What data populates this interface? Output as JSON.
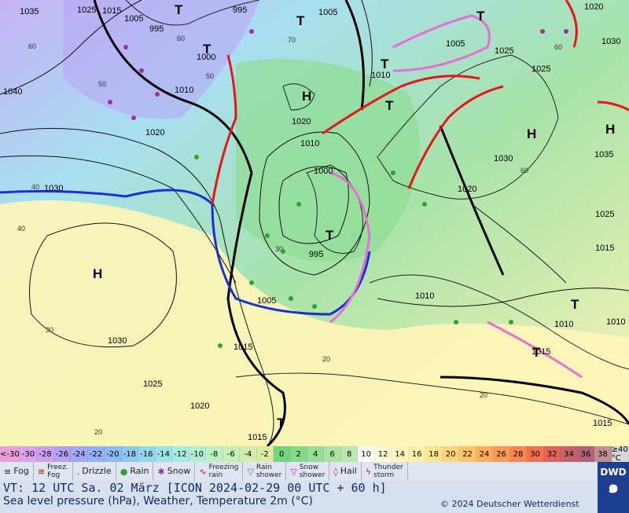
{
  "map": {
    "pressure_labels": [
      "1035",
      "1025",
      "1015",
      "1005",
      "995",
      "995",
      "1005",
      "1040",
      "1010",
      "1020",
      "1030",
      "1000",
      "1010",
      "1020",
      "1010",
      "1000",
      "995",
      "1005",
      "1015",
      "1030",
      "1025",
      "1015",
      "1005",
      "1010",
      "1025",
      "1030",
      "1035",
      "1020",
      "1025",
      "1015",
      "1010",
      "1010",
      "1015",
      "1020",
      "1030",
      "1025",
      "1020",
      "1015"
    ],
    "temperature_labels": [
      "60",
      "60",
      "50",
      "60",
      "70",
      "40",
      "40",
      "30",
      "20",
      "20",
      "30",
      "20",
      "50",
      "60"
    ],
    "high_label": "H",
    "low_label": "T"
  },
  "scale": {
    "values": [
      "<-30",
      "-30",
      "-28",
      "-26",
      "-24",
      "-22",
      "-20",
      "-18",
      "-16",
      "-14",
      "-12",
      "-10",
      "-8",
      "-6",
      "-4",
      "-2",
      "0",
      "2",
      "4",
      "6",
      "8",
      "10",
      "12",
      "14",
      "16",
      "18",
      "20",
      "22",
      "24",
      "26",
      "28",
      "30",
      "32",
      "34",
      "36",
      "38",
      "≥40 °C"
    ],
    "colors": [
      "#e9a0d8",
      "#d9a3f0",
      "#c9a0f0",
      "#b5a0f2",
      "#a5a7f5",
      "#96b0f7",
      "#8cbbf5",
      "#8ccaf2",
      "#92d8ef",
      "#9ce4ea",
      "#a8ede0",
      "#b3f0d2",
      "#bdf0c4",
      "#c8eeb8",
      "#d2ecae",
      "#ddeaa6",
      "#72d47c",
      "#85d98a",
      "#98de96",
      "#aae3a3",
      "#bbe8b0",
      "#ffffff",
      "#fffcd6",
      "#fff6bf",
      "#fff0a8",
      "#ffe592",
      "#ffd57e",
      "#ffc36c",
      "#ffae5e",
      "#ff9a54",
      "#fa8650",
      "#f07250",
      "#e06558",
      "#c8626a",
      "#b0637a",
      "#c09090",
      "#d8d8d8"
    ]
  },
  "legend": {
    "fog": "Fog",
    "freezing_fog": "Freez.\nFog",
    "drizzle": "Drizzle",
    "rain": "Rain",
    "snow": "Snow",
    "freezing_rain": "Freezing\nrain",
    "rain_shower": "Rain\nshower",
    "snow_shower": "Snow\nshower",
    "hail": "Hail",
    "thunderstorm": "Thunder\nstorm"
  },
  "footer": {
    "vt": "VT: 12 UTC Sa.  02 März [ICON 2024-02-29  00 UTC + 60 h]",
    "subtitle": "Sea level pressure (hPa), Weather, Temperature 2m (°C)",
    "copyright": "© 2024 Deutscher Wetterdienst",
    "logo": "DWD"
  }
}
